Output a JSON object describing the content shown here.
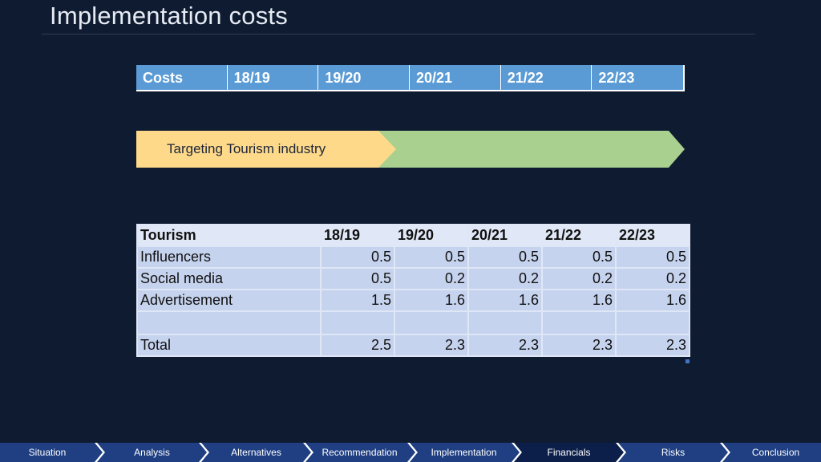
{
  "title": "Implementation costs",
  "costs_header": [
    "Costs",
    "18/19",
    "19/20",
    "20/21",
    "21/22",
    "22/23"
  ],
  "banner": {
    "label": "Targeting Tourism industry"
  },
  "table": {
    "header": [
      "Tourism",
      "18/19",
      "19/20",
      "20/21",
      "21/22",
      "22/23"
    ],
    "rows": [
      [
        "Influencers",
        "0.5",
        "0.5",
        "0.5",
        "0.5",
        "0.5"
      ],
      [
        "Social media",
        "0.5",
        "0.2",
        "0.2",
        "0.2",
        "0.2"
      ],
      [
        "Advertisement",
        "1.5",
        "1.6",
        "1.6",
        "1.6",
        "1.6"
      ],
      [
        "",
        "",
        "",
        "",
        "",
        ""
      ],
      [
        "Total",
        "2.5",
        "2.3",
        "2.3",
        "2.3",
        "2.3"
      ]
    ]
  },
  "nav": {
    "items": [
      "Situation",
      "Analysis",
      "Alternatives",
      "Recommendation",
      "Implementation",
      "Financials",
      "Risks",
      "Conclusion"
    ],
    "active": "Financials"
  },
  "colors": {
    "background": "#0f1b30",
    "header_blue": "#5b9bd5",
    "banner_orange": "#ffd98a",
    "banner_green": "#a9d08e",
    "nav_segment": "#1f3f82",
    "nav_active": "#0c1f4a"
  }
}
